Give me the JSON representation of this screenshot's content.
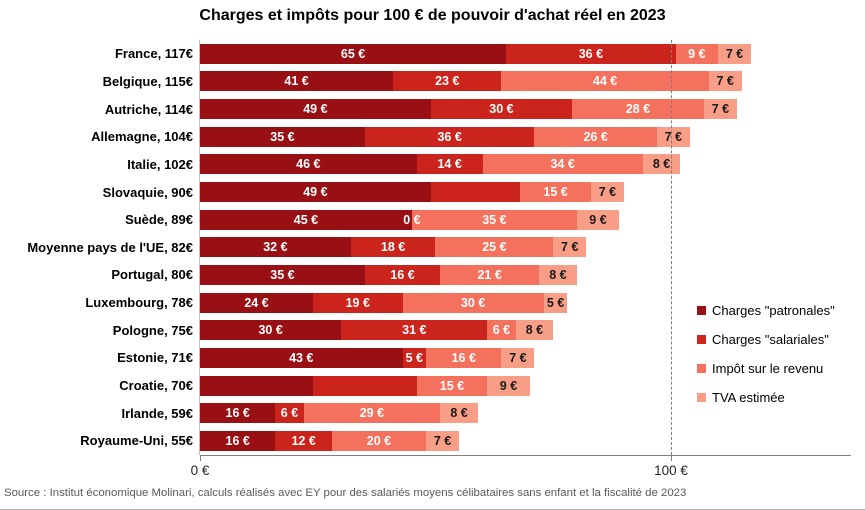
{
  "title": "Charges et impôts pour 100 € de pouvoir d'achat réel en 2023",
  "source": "Source : Institut économique Molinari, calculs réalisés avec EY pour des salariés moyens célibataires sans enfant et la fiscalité de 2023",
  "legend": {
    "items": [
      {
        "label": "Charges \"patronales\"",
        "color": "#981013"
      },
      {
        "label": "Charges \"salariales\"",
        "color": "#CB241C"
      },
      {
        "label": "Impôt sur le revenu",
        "color": "#F4715E"
      },
      {
        "label": "TVA estimée",
        "color": "#F89E86"
      }
    ]
  },
  "axis": {
    "ticks": [
      {
        "value": 0,
        "label": "0 €"
      },
      {
        "value": 100,
        "label": "100 €"
      }
    ],
    "gridline_value": 100
  },
  "chart_data": {
    "type": "bar",
    "orientation": "horizontal-stacked",
    "unit": "€",
    "title": "Charges et impôts pour 100 € de pouvoir d'achat réel en 2023",
    "series": [
      "Charges \"patronales\"",
      "Charges \"salariales\"",
      "Impôt sur le revenu",
      "TVA estimée"
    ],
    "colors": [
      "#981013",
      "#CB241C",
      "#F4715E",
      "#F89E86"
    ],
    "xlim": [
      0,
      141
    ],
    "gridline_x": 100,
    "legend_position": "right",
    "rows": [
      {
        "country": "France",
        "label": "France, 117€",
        "total": 117,
        "values": [
          65,
          36,
          9,
          7
        ],
        "value_labels": [
          "65 €",
          "36 €",
          "9 €",
          "7 €"
        ]
      },
      {
        "country": "Belgique",
        "label": "Belgique, 115€",
        "total": 115,
        "values": [
          41,
          23,
          44,
          7
        ],
        "value_labels": [
          "41 €",
          "23 €",
          "44 €",
          "7 €"
        ]
      },
      {
        "country": "Autriche",
        "label": "Autriche, 114€",
        "total": 114,
        "values": [
          49,
          30,
          28,
          7
        ],
        "value_labels": [
          "49 €",
          "30 €",
          "28 €",
          "7 €"
        ]
      },
      {
        "country": "Allemagne",
        "label": "Allemagne, 104€",
        "total": 104,
        "values": [
          35,
          36,
          26,
          7
        ],
        "value_labels": [
          "35 €",
          "36 €",
          "26 €",
          "7 €"
        ]
      },
      {
        "country": "Italie",
        "label": "Italie, 102€",
        "total": 102,
        "values": [
          46,
          14,
          34,
          8
        ],
        "value_labels": [
          "46 €",
          "14 €",
          "34 €",
          "8 €"
        ]
      },
      {
        "country": "Slovaquie",
        "label": "Slovaquie, 90€",
        "total": 90,
        "values": [
          49,
          19,
          15,
          7
        ],
        "value_labels": [
          "49 €",
          "",
          "15 €",
          "7 €"
        ]
      },
      {
        "country": "Suède",
        "label": "Suède, 89€",
        "total": 89,
        "values": [
          45,
          0,
          35,
          9
        ],
        "value_labels": [
          "45 €",
          "0 €",
          "35 €",
          "9 €"
        ]
      },
      {
        "country": "Moyenne pays de l'UE",
        "label": "Moyenne pays de l'UE, 82€",
        "total": 82,
        "values": [
          32,
          18,
          25,
          7
        ],
        "value_labels": [
          "32 €",
          "18 €",
          "25 €",
          "7 €"
        ]
      },
      {
        "country": "Portugal",
        "label": "Portugal, 80€",
        "total": 80,
        "values": [
          35,
          16,
          21,
          8
        ],
        "value_labels": [
          "35 €",
          "16 €",
          "21 €",
          "8 €"
        ]
      },
      {
        "country": "Luxembourg",
        "label": "Luxembourg, 78€",
        "total": 78,
        "values": [
          24,
          19,
          30,
          5
        ],
        "value_labels": [
          "24 €",
          "19 €",
          "30 €",
          "5 €"
        ]
      },
      {
        "country": "Pologne",
        "label": "Pologne, 75€",
        "total": 75,
        "values": [
          30,
          31,
          6,
          8
        ],
        "value_labels": [
          "30 €",
          "31 €",
          "6 €",
          "8 €"
        ]
      },
      {
        "country": "Estonie",
        "label": "Estonie, 71€",
        "total": 71,
        "values": [
          43,
          5,
          16,
          7
        ],
        "value_labels": [
          "43 €",
          "5 €",
          "16 €",
          "7 €"
        ]
      },
      {
        "country": "Croatie",
        "label": "Croatie, 70€",
        "total": 70,
        "values": [
          24,
          22,
          15,
          9
        ],
        "value_labels": [
          "",
          "",
          "15 €",
          "9 €"
        ]
      },
      {
        "country": "Irlande",
        "label": "Irlande, 59€",
        "total": 59,
        "values": [
          16,
          6,
          29,
          8
        ],
        "value_labels": [
          "16 €",
          "6 €",
          "29 €",
          "8 €"
        ]
      },
      {
        "country": "Royaume-Uni",
        "label": "Royaume-Uni, 55€",
        "total": 55,
        "values": [
          16,
          12,
          20,
          7
        ],
        "value_labels": [
          "16 €",
          "12 €",
          "20 €",
          "7 €"
        ]
      }
    ]
  }
}
